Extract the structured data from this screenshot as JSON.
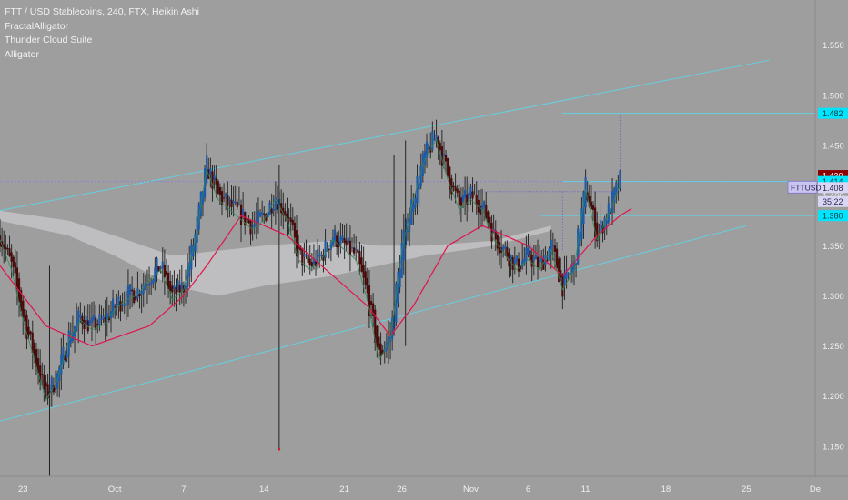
{
  "legend": {
    "title": "FTT / USD Stablecoins, 240, FTX, Heikin Ashi",
    "indicators": [
      "FractalAlligator",
      "Thunder Cloud Suite",
      "Alligator"
    ]
  },
  "colors": {
    "background": "#9e9e9e",
    "candle_up": "#1e5aa8",
    "candle_down": "#4a0b0b",
    "wick": "#2a2a2a",
    "alligator_red": "#e0144c",
    "alligator_green": "#2e8b57",
    "channel": "#66cfe0",
    "cloud": "#c8c8cc",
    "price_tag_current": "#8b0000",
    "price_tag_cyan": "#00e5ff",
    "symbol_tag": "#c9c4f0"
  },
  "chart_data": {
    "type": "candlestick",
    "symbol": "FTTUSD",
    "interval": "240",
    "chart_style": "Heikin Ashi",
    "x_start": "2019-09-21",
    "x_end": "2019-12-01",
    "y_range": [
      1.12,
      1.595
    ],
    "y_axis_side": "right",
    "y_ticks": [
      "1.550",
      "1.500",
      "1.450",
      "1.400",
      "1.350",
      "1.300",
      "1.250",
      "1.200",
      "1.150"
    ],
    "x_ticks": [
      {
        "label": "23",
        "date": "2019-09-23"
      },
      {
        "label": "Oct",
        "date": "2019-10-01"
      },
      {
        "label": "7",
        "date": "2019-10-07"
      },
      {
        "label": "14",
        "date": "2019-10-14"
      },
      {
        "label": "21",
        "date": "2019-10-21"
      },
      {
        "label": "26",
        "date": "2019-10-26"
      },
      {
        "label": "Nov",
        "date": "2019-11-01"
      },
      {
        "label": "6",
        "date": "2019-11-06"
      },
      {
        "label": "11",
        "date": "2019-11-11"
      },
      {
        "label": "18",
        "date": "2019-11-18"
      },
      {
        "label": "25",
        "date": "2019-11-25"
      },
      {
        "label": "De",
        "date": "2019-12-01"
      }
    ],
    "price_path": [
      [
        "2019-09-21",
        1.36
      ],
      [
        "2019-09-22",
        1.33
      ],
      [
        "2019-09-23",
        1.28
      ],
      [
        "2019-09-24",
        1.24
      ],
      [
        "2019-09-25",
        1.2
      ],
      [
        "2019-09-26",
        1.22
      ],
      [
        "2019-09-27",
        1.26
      ],
      [
        "2019-09-28",
        1.28
      ],
      [
        "2019-09-29",
        1.27
      ],
      [
        "2019-09-30",
        1.275
      ],
      [
        "2019-10-01",
        1.29
      ],
      [
        "2019-10-02",
        1.3
      ],
      [
        "2019-10-03",
        1.305
      ],
      [
        "2019-10-04",
        1.32
      ],
      [
        "2019-10-05",
        1.33
      ],
      [
        "2019-10-06",
        1.3
      ],
      [
        "2019-10-07",
        1.31
      ],
      [
        "2019-10-08",
        1.36
      ],
      [
        "2019-10-09",
        1.43
      ],
      [
        "2019-10-10",
        1.4
      ],
      [
        "2019-10-11",
        1.39
      ],
      [
        "2019-10-12",
        1.38
      ],
      [
        "2019-10-13",
        1.37
      ],
      [
        "2019-10-14",
        1.38
      ],
      [
        "2019-10-15",
        1.4
      ],
      [
        "2019-10-16",
        1.38
      ],
      [
        "2019-10-17",
        1.34
      ],
      [
        "2019-10-18",
        1.33
      ],
      [
        "2019-10-19",
        1.34
      ],
      [
        "2019-10-20",
        1.36
      ],
      [
        "2019-10-21",
        1.35
      ],
      [
        "2019-10-22",
        1.34
      ],
      [
        "2019-10-23",
        1.3
      ],
      [
        "2019-10-24",
        1.24
      ],
      [
        "2019-10-25",
        1.26
      ],
      [
        "2019-10-26",
        1.35
      ],
      [
        "2019-10-27",
        1.4
      ],
      [
        "2019-10-28",
        1.44
      ],
      [
        "2019-10-29",
        1.46
      ],
      [
        "2019-10-30",
        1.42
      ],
      [
        "2019-10-31",
        1.39
      ],
      [
        "2019-11-01",
        1.4
      ],
      [
        "2019-11-02",
        1.39
      ],
      [
        "2019-11-03",
        1.36
      ],
      [
        "2019-11-04",
        1.345
      ],
      [
        "2019-11-05",
        1.33
      ],
      [
        "2019-11-06",
        1.34
      ],
      [
        "2019-11-07",
        1.33
      ],
      [
        "2019-11-08",
        1.35
      ],
      [
        "2019-11-09",
        1.31
      ],
      [
        "2019-11-10",
        1.33
      ],
      [
        "2019-11-11",
        1.41
      ],
      [
        "2019-11-12",
        1.36
      ],
      [
        "2019-11-13",
        1.385
      ],
      [
        "2019-11-14",
        1.415
      ]
    ],
    "alligator_red_path": [
      [
        "2019-09-21",
        1.33
      ],
      [
        "2019-09-25",
        1.27
      ],
      [
        "2019-09-29",
        1.25
      ],
      [
        "2019-10-04",
        1.27
      ],
      [
        "2019-10-07",
        1.3
      ],
      [
        "2019-10-09",
        1.33
      ],
      [
        "2019-10-12",
        1.38
      ],
      [
        "2019-10-16",
        1.36
      ],
      [
        "2019-10-19",
        1.33
      ],
      [
        "2019-10-23",
        1.29
      ],
      [
        "2019-10-25",
        1.26
      ],
      [
        "2019-10-27",
        1.29
      ],
      [
        "2019-10-30",
        1.35
      ],
      [
        "2019-11-02",
        1.37
      ],
      [
        "2019-11-06",
        1.35
      ],
      [
        "2019-11-09",
        1.32
      ],
      [
        "2019-11-12",
        1.36
      ],
      [
        "2019-11-14",
        1.38
      ],
      [
        "2019-11-15",
        1.387
      ]
    ],
    "cloud_upper_path": [
      [
        "2019-09-21",
        1.385
      ],
      [
        "2019-09-27",
        1.375
      ],
      [
        "2019-10-01",
        1.36
      ],
      [
        "2019-10-06",
        1.34
      ],
      [
        "2019-10-10",
        1.345
      ],
      [
        "2019-10-14",
        1.35
      ],
      [
        "2019-10-20",
        1.355
      ],
      [
        "2019-10-24",
        1.35
      ],
      [
        "2019-10-28",
        1.35
      ],
      [
        "2019-11-03",
        1.355
      ],
      [
        "2019-11-08",
        1.37
      ]
    ],
    "cloud_lower_path": [
      [
        "2019-09-21",
        1.375
      ],
      [
        "2019-09-27",
        1.36
      ],
      [
        "2019-10-01",
        1.34
      ],
      [
        "2019-10-06",
        1.31
      ],
      [
        "2019-10-10",
        1.3
      ],
      [
        "2019-10-14",
        1.31
      ],
      [
        "2019-10-20",
        1.32
      ],
      [
        "2019-10-24",
        1.33
      ],
      [
        "2019-10-28",
        1.34
      ],
      [
        "2019-11-03",
        1.35
      ],
      [
        "2019-11-08",
        1.365
      ]
    ],
    "channel_lines": [
      {
        "from": [
          "2019-09-21",
          1.385
        ],
        "to": [
          "2019-11-27",
          1.535
        ]
      },
      {
        "from": [
          "2019-09-21",
          1.175
        ],
        "to": [
          "2019-11-25",
          1.37
        ]
      }
    ],
    "horizontal_lines": [
      {
        "price": 1.482,
        "from": "2019-11-09",
        "to": "2019-12-01"
      },
      {
        "price": 1.38,
        "from": "2019-11-07",
        "to": "2019-12-01"
      },
      {
        "price": 1.414,
        "from": "2019-11-09",
        "to": "2019-12-01"
      }
    ],
    "dashed_line": {
      "price": 1.414,
      "from": "2019-09-21",
      "to": "2019-12-01"
    },
    "dotted_guides": [
      {
        "from": [
          "2019-11-01",
          1.404
        ],
        "to": [
          "2019-11-14",
          1.404
        ]
      },
      {
        "from": [
          "2019-11-09",
          1.404
        ],
        "to": [
          "2019-11-09",
          1.345
        ]
      },
      {
        "from": [
          "2019-11-14",
          1.404
        ],
        "to": [
          "2019-11-14",
          1.482
        ]
      }
    ],
    "outlier_wicks": [
      {
        "date": "2019-09-25",
        "high": 1.33,
        "low": 1.12
      },
      {
        "date": "2019-10-15",
        "high": 1.43,
        "low": 1.147
      },
      {
        "date": "2019-10-26",
        "high": 1.455,
        "low": 1.25
      },
      {
        "date": "2019-10-25",
        "high": 1.44,
        "low": 1.26
      }
    ]
  },
  "price_tags": [
    {
      "label": "1.482",
      "price": 1.482,
      "style": "cyan"
    },
    {
      "label": "1.420",
      "price": 1.42,
      "style": "current"
    },
    {
      "label": "1.414",
      "price": 1.414,
      "style": "cyan"
    },
    {
      "label": "1.408",
      "price": 1.408,
      "style": "light",
      "symbol": "FTTUSD"
    },
    {
      "label": "35:22",
      "price": 1.394,
      "style": "light"
    },
    {
      "label": "1.380",
      "price": 1.38,
      "style": "cyan"
    }
  ]
}
